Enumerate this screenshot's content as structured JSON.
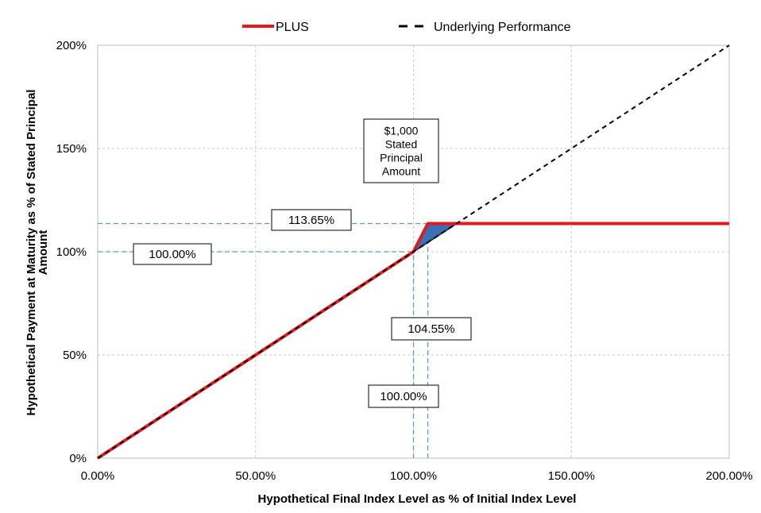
{
  "chart_data": {
    "type": "line",
    "xlabel": "Hypothetical Final Index Level as % of Initial Index Level",
    "ylabel_lines": [
      "Hypothetical Payment at Maturity as % of Stated Principal",
      "Amount"
    ],
    "xlim": [
      0,
      200
    ],
    "ylim": [
      0,
      200
    ],
    "x_ticks": [
      0,
      50,
      100,
      150,
      200
    ],
    "x_tick_labels": [
      "0.00%",
      "50.00%",
      "100.00%",
      "150.00%",
      "200.00%"
    ],
    "y_ticks": [
      0,
      50,
      100,
      150,
      200
    ],
    "y_tick_labels": [
      "0%",
      "50%",
      "100%",
      "150%",
      "200%"
    ],
    "grid": true,
    "legend_position": "top",
    "series": [
      {
        "name": "PLUS",
        "color": "#e31a1c",
        "style": "solid",
        "x": [
          0,
          100,
          104.55,
          200
        ],
        "y": [
          0,
          100,
          113.65,
          113.65
        ]
      },
      {
        "name": "Underlying Performance",
        "color": "#000000",
        "style": "dashed",
        "x": [
          0,
          200
        ],
        "y": [
          0,
          200
        ]
      }
    ],
    "shaded_region": {
      "color": "#3b6fb6",
      "x": [
        100,
        104.55,
        113.65
      ],
      "y": [
        100,
        113.65,
        113.65
      ]
    },
    "reference_lines": [
      {
        "axis": "y",
        "value": 113.65,
        "x_to": 104.55
      },
      {
        "axis": "y",
        "value": 100,
        "x_to": 100
      },
      {
        "axis": "x",
        "value": 100,
        "y_to": 100
      },
      {
        "axis": "x",
        "value": 104.55,
        "y_to": 113.65
      }
    ],
    "annotations": [
      {
        "id": "label_113",
        "text": "113.65%"
      },
      {
        "id": "label_y100",
        "text": "100.00%"
      },
      {
        "id": "label_104",
        "text": "104.55%"
      },
      {
        "id": "label_x100",
        "text": "100.00%"
      },
      {
        "id": "label_principal",
        "lines": [
          "$1,000",
          "Stated",
          "Principal",
          "Amount"
        ]
      }
    ]
  }
}
